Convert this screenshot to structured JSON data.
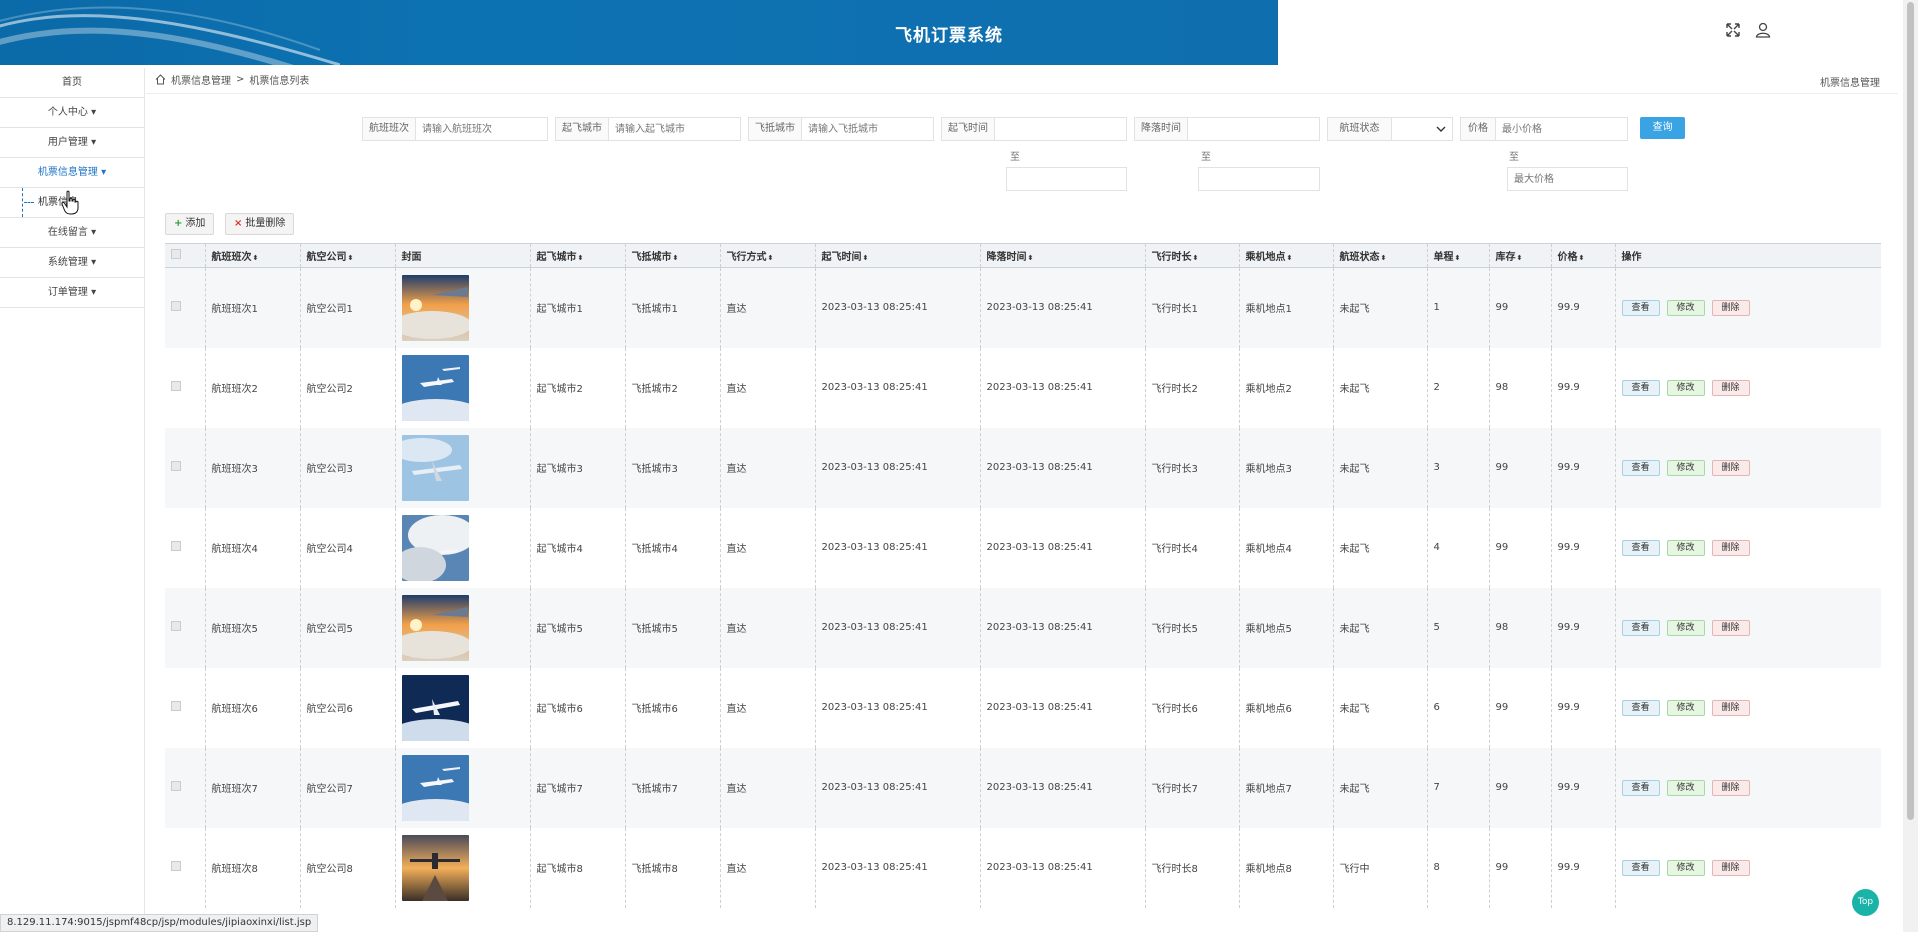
{
  "header": {
    "title": "飞机订票系统",
    "bg_color": "#0d72b2"
  },
  "sidebar": {
    "items": [
      {
        "label": "首页"
      },
      {
        "label": "个人中心 ▾"
      },
      {
        "label": "用户管理 ▾"
      },
      {
        "label": "机票信息管理 ▾"
      },
      {
        "label": "机票信息"
      },
      {
        "label": "在线留言 ▾"
      },
      {
        "label": "系统管理 ▾"
      },
      {
        "label": "订单管理 ▾"
      }
    ]
  },
  "breadcrumb": {
    "section": "机票信息管理",
    "separator": ">",
    "page": "机票信息列表",
    "right_label": "机票信息管理"
  },
  "search": {
    "flight_label": "航班班次",
    "flight_placeholder": "请输入航班班次",
    "from_label": "起飞城市",
    "from_placeholder": "请输入起飞城市",
    "to_label": "飞抵城市",
    "to_placeholder": "请输入飞抵城市",
    "depart_label": "起飞时间",
    "land_label": "降落时间",
    "status_label": "航班状态",
    "price_label": "价格",
    "price_min_placeholder": "最小价格",
    "price_max_placeholder": "最大价格",
    "range_to": "至",
    "query_button": "查询"
  },
  "toolbar": {
    "add_label": "添加",
    "batch_delete_label": "批量删除"
  },
  "table": {
    "headers": [
      "航班班次",
      "航空公司",
      "封面",
      "起飞城市",
      "飞抵城市",
      "飞行方式",
      "起飞时间",
      "降落时间",
      "飞行时长",
      "乘机地点",
      "航班状态",
      "单程",
      "库存",
      "价格",
      "操作"
    ],
    "sortable": [
      true,
      true,
      false,
      true,
      true,
      true,
      true,
      true,
      true,
      true,
      true,
      true,
      true,
      true,
      false
    ],
    "ops": {
      "view": "查看",
      "edit": "修改",
      "delete": "删除"
    },
    "rows": [
      {
        "flight": "航班班次1",
        "airline": "航空公司1",
        "cover": "sunset-clouds",
        "from": "起飞城市1",
        "to": "飞抵城市1",
        "mode": "直达",
        "depart": "2023-03-13 08:25:41",
        "land": "2023-03-13 08:25:41",
        "duration": "飞行时长1",
        "boarding": "乘机地点1",
        "status": "未起飞",
        "oneway": "1",
        "stock": "99",
        "price": "99.9"
      },
      {
        "flight": "航班班次2",
        "airline": "航空公司2",
        "cover": "blue-sky-planes",
        "from": "起飞城市2",
        "to": "飞抵城市2",
        "mode": "直达",
        "depart": "2023-03-13 08:25:41",
        "land": "2023-03-13 08:25:41",
        "duration": "飞行时长2",
        "boarding": "乘机地点2",
        "status": "未起飞",
        "oneway": "2",
        "stock": "98",
        "price": "99.9"
      },
      {
        "flight": "航班班次3",
        "airline": "航空公司3",
        "cover": "plane-light-sky",
        "from": "起飞城市3",
        "to": "飞抵城市3",
        "mode": "直达",
        "depart": "2023-03-13 08:25:41",
        "land": "2023-03-13 08:25:41",
        "duration": "飞行时长3",
        "boarding": "乘机地点3",
        "status": "未起飞",
        "oneway": "3",
        "stock": "99",
        "price": "99.9"
      },
      {
        "flight": "航班班次4",
        "airline": "航空公司4",
        "cover": "plane-cloudy",
        "from": "起飞城市4",
        "to": "飞抵城市4",
        "mode": "直达",
        "depart": "2023-03-13 08:25:41",
        "land": "2023-03-13 08:25:41",
        "duration": "飞行时长4",
        "boarding": "乘机地点4",
        "status": "未起飞",
        "oneway": "4",
        "stock": "99",
        "price": "99.9"
      },
      {
        "flight": "航班班次5",
        "airline": "航空公司5",
        "cover": "sunset-clouds",
        "from": "起飞城市5",
        "to": "飞抵城市5",
        "mode": "直达",
        "depart": "2023-03-13 08:25:41",
        "land": "2023-03-13 08:25:41",
        "duration": "飞行时长5",
        "boarding": "乘机地点5",
        "status": "未起飞",
        "oneway": "5",
        "stock": "98",
        "price": "99.9"
      },
      {
        "flight": "航班班次6",
        "airline": "航空公司6",
        "cover": "dark-blue-plane",
        "from": "起飞城市6",
        "to": "飞抵城市6",
        "mode": "直达",
        "depart": "2023-03-13 08:25:41",
        "land": "2023-03-13 08:25:41",
        "duration": "飞行时长6",
        "boarding": "乘机地点6",
        "status": "未起飞",
        "oneway": "6",
        "stock": "99",
        "price": "99.9"
      },
      {
        "flight": "航班班次7",
        "airline": "航空公司7",
        "cover": "blue-sky-planes",
        "from": "起飞城市7",
        "to": "飞抵城市7",
        "mode": "直达",
        "depart": "2023-03-13 08:25:41",
        "land": "2023-03-13 08:25:41",
        "duration": "飞行时长7",
        "boarding": "乘机地点7",
        "status": "未起飞",
        "oneway": "7",
        "stock": "99",
        "price": "99.9"
      },
      {
        "flight": "航班班次8",
        "airline": "航空公司8",
        "cover": "runway-sunset",
        "from": "起飞城市8",
        "to": "飞抵城市8",
        "mode": "直达",
        "depart": "2023-03-13 08:25:41",
        "land": "2023-03-13 08:25:41",
        "duration": "飞行时长8",
        "boarding": "乘机地点8",
        "status": "飞行中",
        "oneway": "8",
        "stock": "99",
        "price": "99.9"
      }
    ]
  },
  "status_url": "8.129.11.174:9015/jspmf48cp/jsp/modules/jipiaoxinxi/list.jsp",
  "top_button": "Top"
}
